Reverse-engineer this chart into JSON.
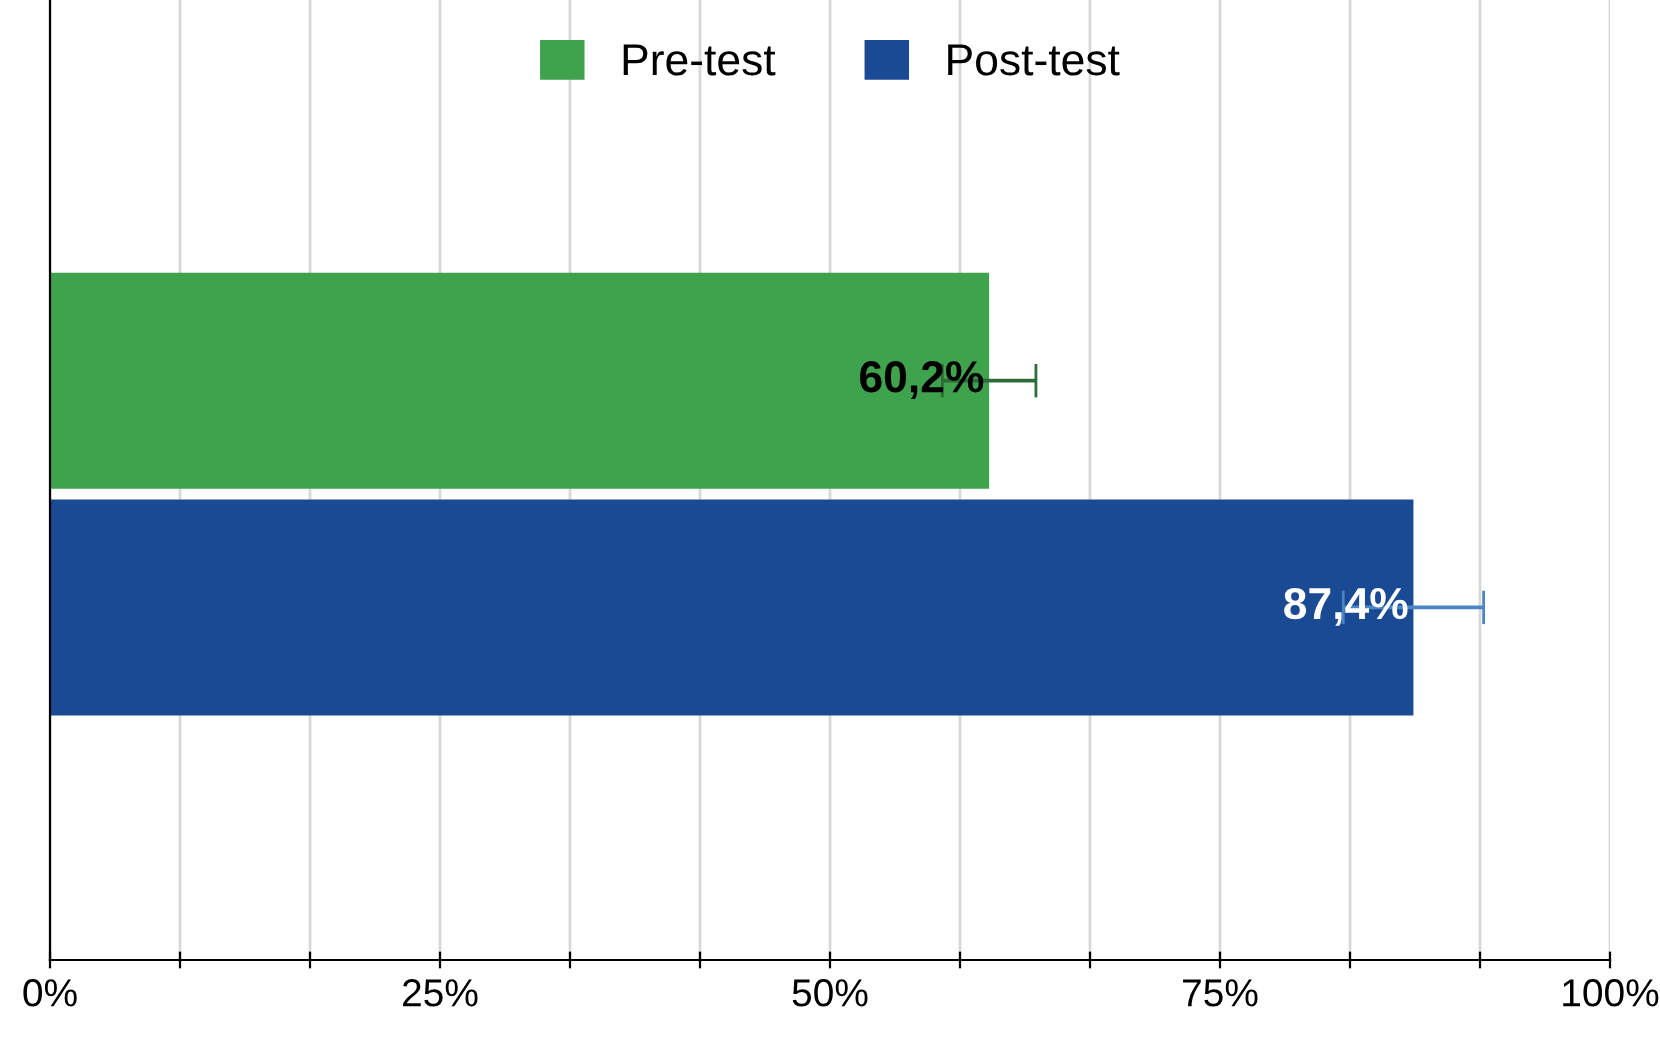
{
  "chart_data": {
    "type": "bar",
    "orientation": "horizontal",
    "categories": [
      null
    ],
    "series": [
      {
        "name": "Pre-test",
        "color": "#3fa34d",
        "values": [
          60.2
        ],
        "errors": [
          3.0
        ],
        "value_labels": [
          "60,2%"
        ]
      },
      {
        "name": "Post-test",
        "color": "#1a4a94",
        "values": [
          87.4
        ],
        "errors": [
          4.5
        ],
        "value_labels": [
          "87,4%"
        ]
      }
    ],
    "xlim": [
      0,
      100
    ],
    "xticks": [
      {
        "value": 0,
        "label": "0%"
      },
      {
        "value": 8.333,
        "label": null
      },
      {
        "value": 16.667,
        "label": null
      },
      {
        "value": 25,
        "label": "25%"
      },
      {
        "value": 33.333,
        "label": null
      },
      {
        "value": 41.667,
        "label": null
      },
      {
        "value": 50,
        "label": "50%"
      },
      {
        "value": 58.333,
        "label": null
      },
      {
        "value": 66.667,
        "label": null
      },
      {
        "value": 75,
        "label": "75%"
      },
      {
        "value": 83.333,
        "label": null
      },
      {
        "value": 91.667,
        "label": null
      },
      {
        "value": 100,
        "label": "100%"
      }
    ],
    "grid": "x",
    "legend": "top",
    "tick_labels": "x"
  }
}
